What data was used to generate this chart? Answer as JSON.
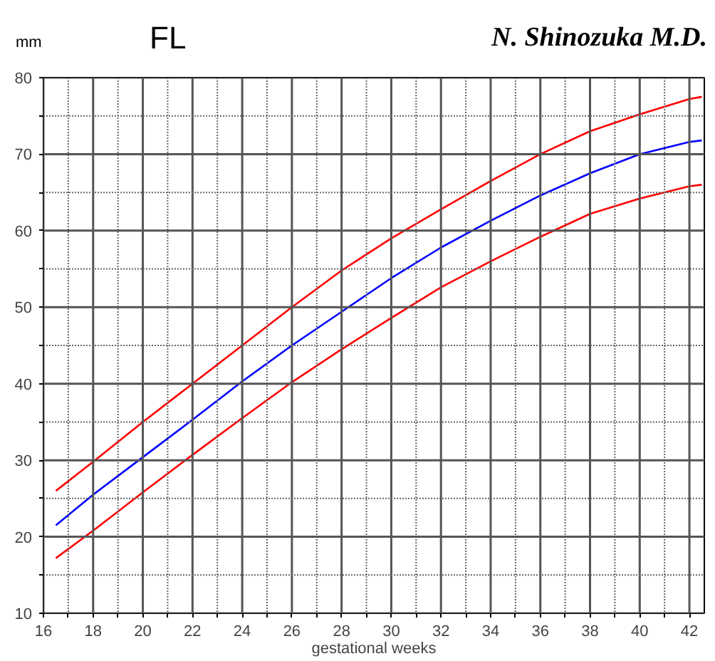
{
  "chart_data": {
    "type": "line",
    "title": "FL",
    "ylabel": "mm",
    "xlabel": "gestational weeks",
    "annotations": [
      "N. Shinozuka M.D."
    ],
    "x": [
      16.5,
      18,
      20,
      22,
      24,
      26,
      28,
      30,
      32,
      34,
      36,
      38,
      40,
      42,
      42.5
    ],
    "series": [
      {
        "color": "#ff0000",
        "values": [
          26,
          29.8,
          35,
          40,
          45,
          50,
          54.8,
          59,
          62.8,
          66.5,
          70,
          73,
          75.2,
          77.2,
          77.5
        ]
      },
      {
        "color": "#0000ff",
        "values": [
          21.5,
          25.5,
          30.4,
          35.3,
          40.3,
          45,
          49.4,
          53.8,
          57.8,
          61.3,
          64.6,
          67.5,
          70,
          71.6,
          71.8
        ]
      },
      {
        "color": "#ff0000",
        "values": [
          17.2,
          20.8,
          25.8,
          30.7,
          35.5,
          40.2,
          44.5,
          48.6,
          52.6,
          56,
          59.2,
          62.2,
          64.2,
          65.8,
          66
        ]
      }
    ],
    "xlim": [
      16,
      42.6
    ],
    "ylim": [
      10,
      80
    ],
    "xticks": [
      16,
      {
        "value": 17,
        "label": null
      },
      18,
      {
        "value": 19,
        "label": null
      },
      20,
      {
        "value": 21,
        "label": null
      },
      22,
      {
        "value": 23,
        "label": null
      },
      24,
      {
        "value": 25,
        "label": null
      },
      26,
      {
        "value": 27,
        "label": null
      },
      28,
      {
        "value": 29,
        "label": null
      },
      30,
      {
        "value": 31,
        "label": null
      },
      32,
      {
        "value": 33,
        "label": null
      },
      34,
      {
        "value": 35,
        "label": null
      },
      36,
      {
        "value": 37,
        "label": null
      },
      38,
      {
        "value": 39,
        "label": null
      },
      40,
      {
        "value": 41,
        "label": null
      },
      42
    ],
    "yticks": [
      10,
      {
        "value": 15,
        "label": null
      },
      20,
      {
        "value": 25,
        "label": null
      },
      30,
      {
        "value": 35,
        "label": null
      },
      40,
      {
        "value": 45,
        "label": null
      },
      50,
      {
        "value": 55,
        "label": null
      },
      60,
      {
        "value": 65,
        "label": null
      },
      70,
      {
        "value": 75,
        "label": null
      },
      80
    ],
    "grid": true,
    "marker": "none",
    "line_style": "solid"
  }
}
